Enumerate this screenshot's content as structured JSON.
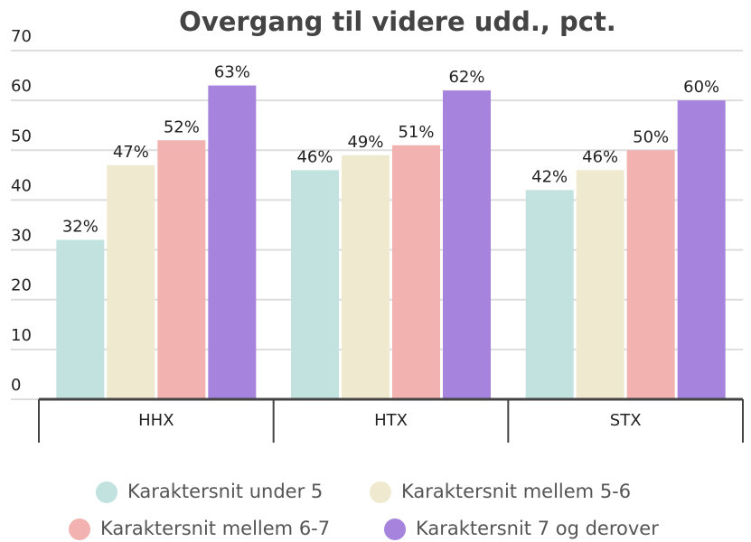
{
  "chart_data": {
    "type": "bar",
    "title": "Overgang til videre udd., pct.",
    "categories": [
      "HHX",
      "HTX",
      "STX"
    ],
    "series": [
      {
        "name": "Karaktersnit under 5",
        "color": "#c1e2df",
        "values": [
          32,
          46,
          42
        ],
        "value_labels": [
          "32%",
          "46%",
          "42%"
        ]
      },
      {
        "name": "Karaktersnit mellem 5-6",
        "color": "#efe9cf",
        "values": [
          47,
          49,
          46
        ],
        "value_labels": [
          "47%",
          "49%",
          "46%"
        ]
      },
      {
        "name": "Karaktersnit mellem 6-7",
        "color": "#f2b2b0",
        "values": [
          52,
          51,
          50
        ],
        "value_labels": [
          "52%",
          "51%",
          "50%"
        ]
      },
      {
        "name": "Karaktersnit 7 og derover",
        "color": "#a683dc",
        "values": [
          63,
          62,
          60
        ],
        "value_labels": [
          "63%",
          "62%",
          "60%"
        ]
      }
    ],
    "ylim": [
      0,
      70
    ],
    "yticks": [
      0,
      10,
      20,
      30,
      40,
      50,
      60,
      70
    ],
    "grid": true,
    "legend": "bottom"
  }
}
